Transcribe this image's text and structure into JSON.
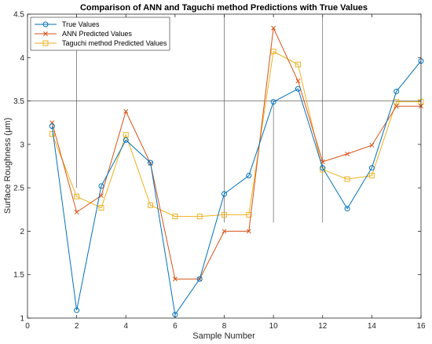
{
  "chart_data": {
    "type": "line",
    "title": "Comparison of ANN and Taguchi method Predictions with True Values",
    "xlabel": "Sample Number",
    "ylabel": "Surface Roughness (μm)",
    "xlim": [
      0,
      16
    ],
    "ylim": [
      1,
      4.5
    ],
    "xticks": [
      0,
      2,
      4,
      6,
      8,
      10,
      12,
      14,
      16
    ],
    "yticks": [
      1,
      1.5,
      2,
      2.5,
      3,
      3.5,
      4,
      4.5
    ],
    "grid": false,
    "legend_position": "top-left",
    "x": [
      1,
      2,
      3,
      4,
      5,
      6,
      7,
      8,
      9,
      10,
      11,
      12,
      13,
      14,
      15,
      16
    ],
    "series": [
      {
        "name": "True Values",
        "color": "#0072BD",
        "marker": "circle",
        "values": [
          3.21,
          1.09,
          2.52,
          3.05,
          2.79,
          1.04,
          1.45,
          2.43,
          2.64,
          3.49,
          3.64,
          2.73,
          2.26,
          2.73,
          3.61,
          3.96
        ]
      },
      {
        "name": "ANN Predicted Values",
        "color": "#D95319",
        "marker": "x",
        "values": [
          3.25,
          2.22,
          2.41,
          3.38,
          2.78,
          1.45,
          1.45,
          2.0,
          2.0,
          4.34,
          3.73,
          2.8,
          2.89,
          2.99,
          3.44,
          3.44
        ]
      },
      {
        "name": "Taguchi method Predicted Values",
        "color": "#EDB120",
        "marker": "square",
        "values": [
          3.12,
          2.4,
          2.27,
          3.11,
          2.3,
          2.17,
          2.17,
          2.19,
          2.19,
          4.07,
          3.92,
          2.71,
          2.6,
          2.64,
          3.49,
          3.49
        ]
      }
    ]
  }
}
